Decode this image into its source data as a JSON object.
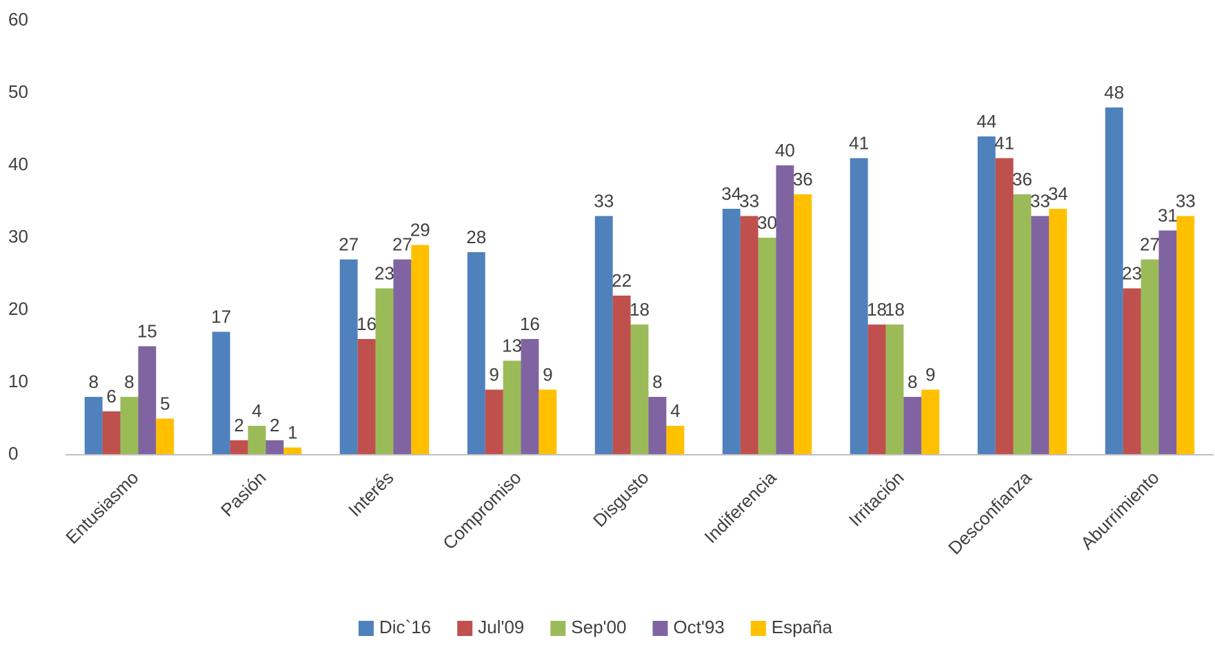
{
  "chart_data": {
    "type": "bar",
    "categories": [
      "Entusiasmo",
      "Pasión",
      "Interés",
      "Compromiso",
      "Disgusto",
      "Indiferencia",
      "Irritación",
      "Desconfianza",
      "Aburrimiento"
    ],
    "series": [
      {
        "name": "Dic`16",
        "color": "#4f81bd",
        "values": [
          8,
          17,
          27,
          28,
          33,
          34,
          41,
          44,
          48
        ]
      },
      {
        "name": "Jul'09",
        "color": "#c0504d",
        "values": [
          6,
          2,
          16,
          9,
          22,
          33,
          18,
          41,
          23
        ]
      },
      {
        "name": "Sep'00",
        "color": "#9bbb59",
        "values": [
          8,
          4,
          23,
          13,
          18,
          30,
          18,
          36,
          27
        ]
      },
      {
        "name": "Oct'93",
        "color": "#8064a2",
        "values": [
          15,
          2,
          27,
          16,
          8,
          40,
          8,
          33,
          31
        ]
      },
      {
        "name": "España",
        "color": "#ffc000",
        "values": [
          5,
          1,
          29,
          9,
          4,
          36,
          9,
          34,
          33
        ]
      }
    ],
    "ylim": [
      0,
      60
    ],
    "yticks": [
      0,
      10,
      20,
      30,
      40,
      50,
      60
    ],
    "grid": false,
    "legend": "bottom"
  }
}
